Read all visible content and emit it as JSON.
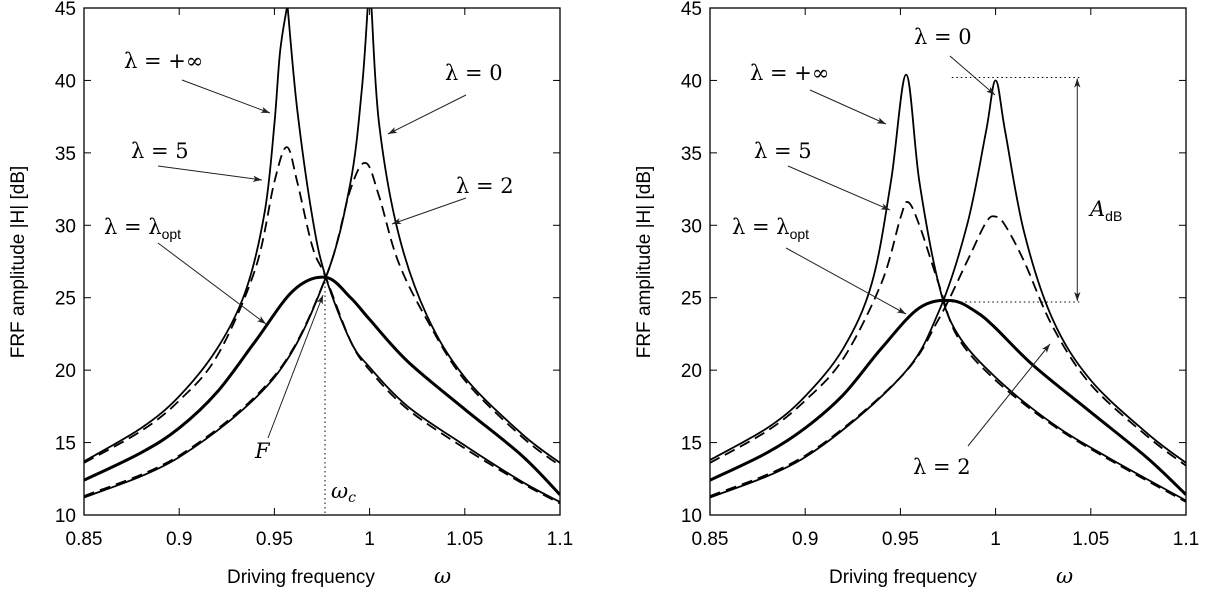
{
  "chart_data": [
    {
      "type": "line",
      "xlabel": "Driving frequency",
      "xlabel_symbol": "ω",
      "ylabel": "FRF amplitude |H| [dB]",
      "xlim": [
        0.85,
        1.1
      ],
      "ylim": [
        10,
        45
      ],
      "xticks": [
        "0.85",
        "0.9",
        "0.95",
        "1",
        "1.05",
        "1.1"
      ],
      "yticks": [
        "10",
        "15",
        "20",
        "25",
        "30",
        "35",
        "40",
        "45"
      ],
      "series": [
        {
          "name": "λ = +∞",
          "style": "solid",
          "x": [
            0.85,
            0.88,
            0.9,
            0.92,
            0.935,
            0.945,
            0.95,
            0.953,
            0.9565
          ],
          "y": [
            13.7,
            16.0,
            18.2,
            21.5,
            25.5,
            31.0,
            37.0,
            42.0,
            45
          ]
        },
        {
          "name": "λ = +∞",
          "style": "solid",
          "x": [
            0.957,
            0.962,
            0.97,
            0.977,
            0.99,
            1.0,
            1.02,
            1.05,
            1.08,
            1.1
          ],
          "y": [
            45,
            38.0,
            30.5,
            26.4,
            22.0,
            20.2,
            17.5,
            14.8,
            12.3,
            10.9
          ]
        },
        {
          "name": "λ = 0",
          "style": "solid",
          "x": [
            0.85,
            0.9,
            0.95,
            0.977,
            0.99,
            0.996,
            0.999
          ],
          "y": [
            11.2,
            14.0,
            19.5,
            26.4,
            33.0,
            39.5,
            45
          ]
        },
        {
          "name": "λ = 0",
          "style": "solid",
          "x": [
            1.001,
            1.005,
            1.015,
            1.03,
            1.05,
            1.08,
            1.1
          ],
          "y": [
            45,
            37.0,
            29.5,
            23.8,
            19.5,
            15.6,
            13.6
          ]
        },
        {
          "name": "λ = 5",
          "style": "dashed",
          "x": [
            0.85,
            0.88,
            0.9,
            0.92,
            0.94,
            0.95,
            0.9565,
            0.962,
            0.97,
            0.977,
            0.99,
            1.0,
            1.02,
            1.05,
            1.08,
            1.1
          ],
          "y": [
            13.6,
            15.8,
            17.9,
            21.0,
            27.0,
            33.0,
            35.4,
            33.0,
            28.5,
            26.4,
            22.0,
            20.0,
            17.3,
            14.6,
            12.2,
            10.8
          ]
        },
        {
          "name": "λ = 2",
          "style": "dashed",
          "x": [
            0.85,
            0.9,
            0.95,
            0.977,
            0.99,
            0.998,
            1.005,
            1.015,
            1.03,
            1.05,
            1.08,
            1.1
          ],
          "y": [
            11.3,
            14.1,
            19.6,
            26.4,
            32.5,
            34.3,
            32.0,
            27.5,
            23.5,
            19.3,
            15.4,
            13.4
          ]
        },
        {
          "name": "λ = λopt",
          "style": "solid-thick",
          "x": [
            0.85,
            0.88,
            0.9,
            0.92,
            0.94,
            0.96,
            0.977,
            0.99,
            1.0,
            1.02,
            1.05,
            1.08,
            1.1
          ],
          "y": [
            12.4,
            14.3,
            16.0,
            18.5,
            22.0,
            25.5,
            26.4,
            25.0,
            23.5,
            20.6,
            17.3,
            14.1,
            11.4
          ]
        }
      ],
      "annotations": {
        "lambda_inf": "λ = +∞",
        "lambda_0": "λ = 0",
        "lambda_5": "λ = 5",
        "lambda_2": "λ = 2",
        "lambda_opt": "λ = λ",
        "lambda_opt_sub": "opt",
        "point_F": "F",
        "omega_c": "ω",
        "omega_c_sub": "c"
      }
    },
    {
      "type": "line",
      "xlabel": "Driving frequency",
      "xlabel_symbol": "ω",
      "ylabel": "FRF amplitude |H| [dB]",
      "xlim": [
        0.85,
        1.1
      ],
      "ylim": [
        10,
        45
      ],
      "xticks": [
        "0.85",
        "0.9",
        "0.95",
        "1",
        "1.05",
        "1.1"
      ],
      "yticks": [
        "10",
        "15",
        "20",
        "25",
        "30",
        "35",
        "40",
        "45"
      ],
      "series": [
        {
          "name": "λ = +∞",
          "style": "solid",
          "x": [
            0.85,
            0.88,
            0.9,
            0.92,
            0.935,
            0.945,
            0.953,
            0.96,
            0.97,
            0.98,
            1.0,
            1.03,
            1.06,
            1.1
          ],
          "y": [
            13.8,
            16.0,
            18.2,
            21.5,
            26.0,
            33.0,
            40.4,
            33.0,
            26.0,
            22.5,
            19.5,
            16.3,
            13.9,
            11.0
          ]
        },
        {
          "name": "λ = 0",
          "style": "solid",
          "x": [
            0.85,
            0.9,
            0.95,
            0.97,
            0.985,
            0.995,
            1.0,
            1.005,
            1.015,
            1.03,
            1.05,
            1.08,
            1.1
          ],
          "y": [
            11.2,
            14.0,
            19.5,
            24.0,
            30.0,
            36.5,
            40.0,
            36.5,
            29.5,
            23.5,
            19.3,
            15.6,
            13.6
          ]
        },
        {
          "name": "λ = 5",
          "style": "dashed",
          "x": [
            0.85,
            0.88,
            0.9,
            0.92,
            0.94,
            0.95,
            0.954,
            0.96,
            0.97,
            0.98,
            1.0,
            1.03,
            1.06,
            1.1
          ],
          "y": [
            13.6,
            15.8,
            17.9,
            20.8,
            26.0,
            30.5,
            31.6,
            30.0,
            26.0,
            22.3,
            19.3,
            16.2,
            13.8,
            10.9
          ]
        },
        {
          "name": "λ = 2",
          "style": "dashed",
          "x": [
            0.85,
            0.9,
            0.95,
            0.97,
            0.985,
            0.995,
            1.0,
            1.005,
            1.015,
            1.03,
            1.05,
            1.08,
            1.1
          ],
          "y": [
            11.3,
            14.1,
            19.5,
            23.5,
            27.5,
            30.2,
            30.6,
            30.0,
            27.5,
            23.0,
            19.0,
            15.4,
            13.4
          ]
        },
        {
          "name": "λ = λopt",
          "style": "solid-thick",
          "x": [
            0.85,
            0.88,
            0.9,
            0.92,
            0.94,
            0.96,
            0.977,
            0.99,
            1.0,
            1.02,
            1.05,
            1.08,
            1.1
          ],
          "y": [
            12.4,
            14.3,
            16.0,
            18.3,
            21.5,
            24.3,
            24.8,
            24.0,
            22.9,
            20.3,
            17.1,
            13.9,
            11.4
          ]
        }
      ],
      "reference_lines": {
        "top_db": 40.2,
        "bottom_db": 24.7,
        "x_from": 0.977,
        "x_to": 1.045
      },
      "annotations": {
        "lambda_inf": "λ = +∞",
        "lambda_0": "λ = 0",
        "lambda_5": "λ = 5",
        "lambda_2": "λ = 2",
        "lambda_opt": "λ = λ",
        "lambda_opt_sub": "opt",
        "amplitude": "A",
        "amplitude_sub": "dB"
      }
    }
  ]
}
